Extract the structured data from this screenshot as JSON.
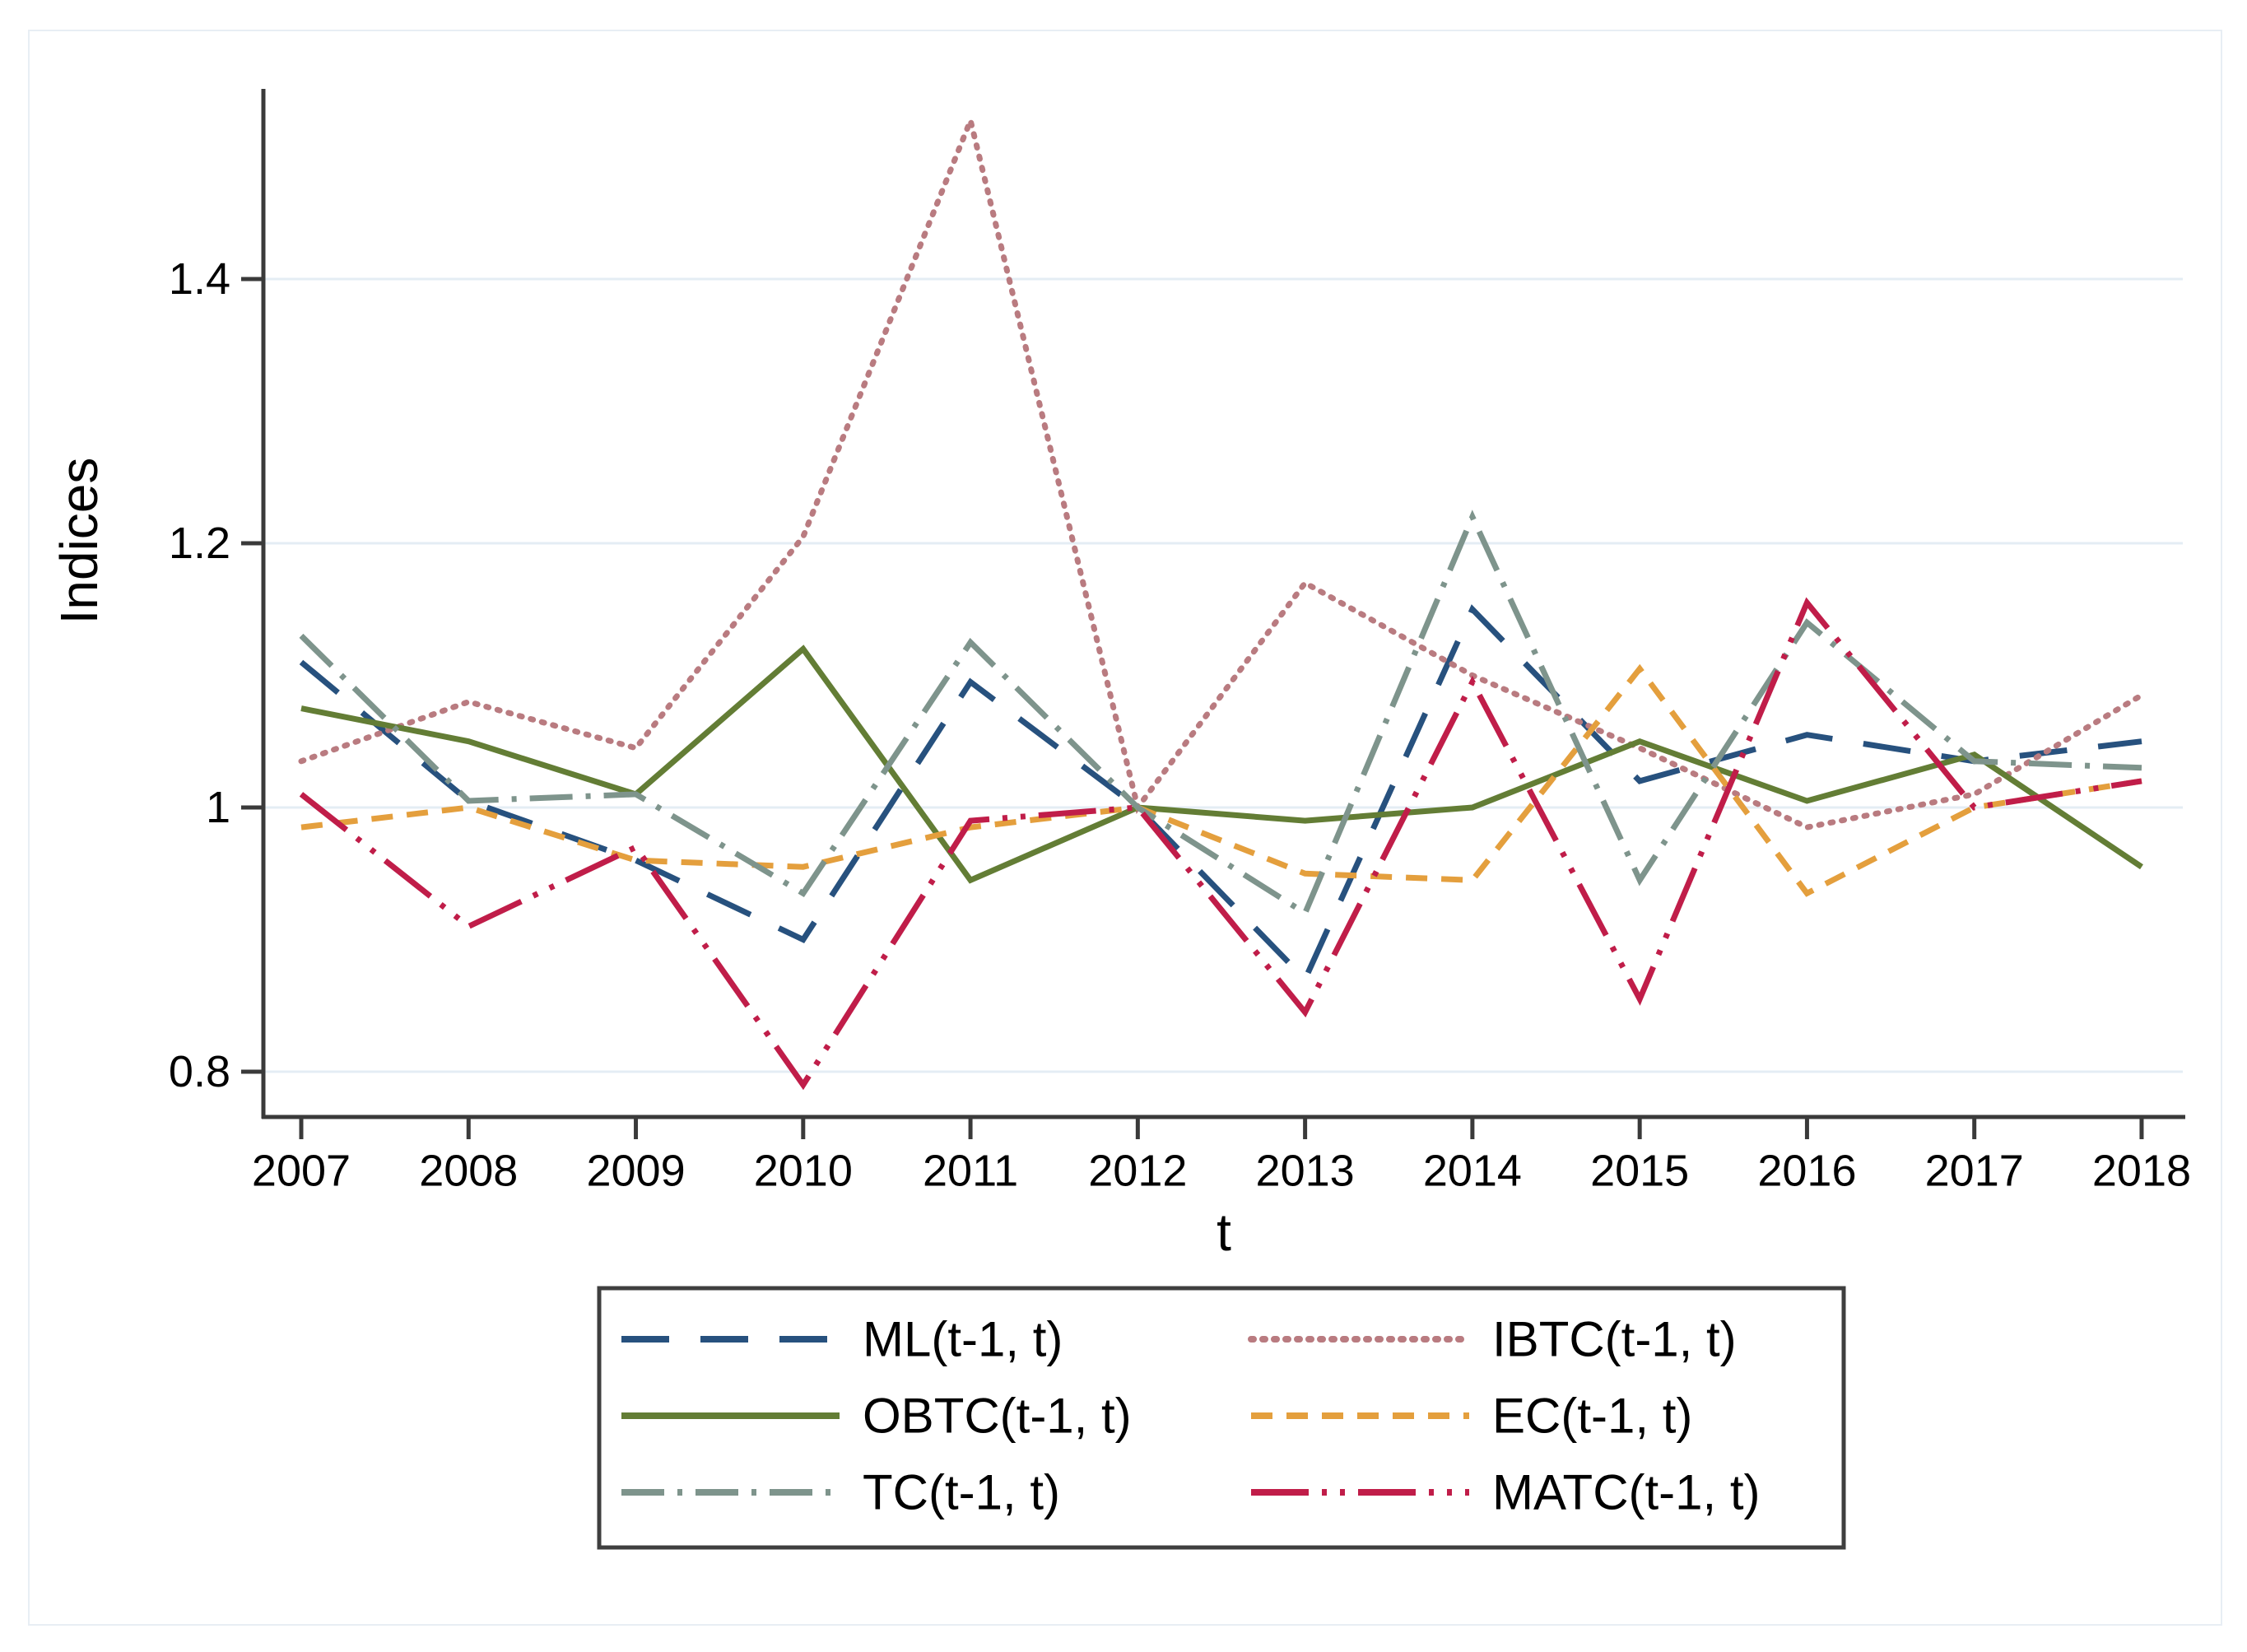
{
  "chart_data": {
    "type": "line",
    "title": "",
    "xlabel": "t",
    "ylabel": "Indices",
    "x": [
      2007,
      2008,
      2009,
      2010,
      2011,
      2012,
      2013,
      2014,
      2015,
      2016,
      2017,
      2018
    ],
    "ylim": [
      0.765,
      1.545
    ],
    "yticks": [
      {
        "value": 0.8,
        "label": "0.8"
      },
      {
        "value": 1.0,
        "label": "1"
      },
      {
        "value": 1.2,
        "label": "1.2"
      },
      {
        "value": 1.4,
        "label": "1.4"
      }
    ],
    "grid": "horizontal-only",
    "legend_position": "bottom-center",
    "legend_columns": [
      [
        "ML(t-1, t)",
        "OBTC(t-1, t)",
        "TC(t-1, t)"
      ],
      [
        "IBTC(t-1, t)",
        "EC(t-1, t)",
        "MATC(t-1, t)"
      ]
    ],
    "series": [
      {
        "name": "ML(t-1, t)",
        "color": "#27517e",
        "line_style": "long-dash",
        "values": [
          1.11,
          1.005,
          0.96,
          0.9,
          1.095,
          1.0,
          0.87,
          1.15,
          1.02,
          1.055,
          1.035,
          1.05
        ]
      },
      {
        "name": "IBTC(t-1, t)",
        "color": "#b97b80",
        "line_style": "dotted",
        "values": [
          1.035,
          1.08,
          1.045,
          1.205,
          1.52,
          1.0,
          1.17,
          1.1,
          1.045,
          0.985,
          1.01,
          1.085
        ]
      },
      {
        "name": "OBTC(t-1, t)",
        "color": "#637d35",
        "line_style": "solid",
        "values": [
          1.075,
          1.05,
          1.01,
          1.12,
          0.945,
          1.0,
          0.99,
          1.0,
          1.05,
          1.005,
          1.04,
          0.955
        ]
      },
      {
        "name": "EC(t-1, t)",
        "color": "#e49f3d",
        "line_style": "short-dash",
        "values": [
          0.985,
          1.0,
          0.96,
          0.955,
          0.985,
          1.0,
          0.95,
          0.945,
          1.105,
          0.935,
          1.0,
          1.02
        ]
      },
      {
        "name": "TC(t-1, t)",
        "color": "#7e948c",
        "line_style": "dash-dot",
        "values": [
          1.13,
          1.005,
          1.01,
          0.935,
          1.125,
          1.0,
          0.92,
          1.22,
          0.945,
          1.14,
          1.035,
          1.03
        ]
      },
      {
        "name": "MATC(t-1, t)",
        "color": "#c01d49",
        "line_style": "dash-dot-dot",
        "values": [
          1.01,
          0.91,
          0.97,
          0.79,
          0.99,
          1.0,
          0.845,
          1.095,
          0.855,
          1.155,
          1.0,
          1.02
        ]
      }
    ]
  },
  "colors": {
    "background": "#ffffff",
    "frame": "#e8eef4",
    "axis": "#3a3a3a",
    "gridline": "#e4edf4",
    "legend_border": "#3f3f3f",
    "text": "#000000"
  }
}
